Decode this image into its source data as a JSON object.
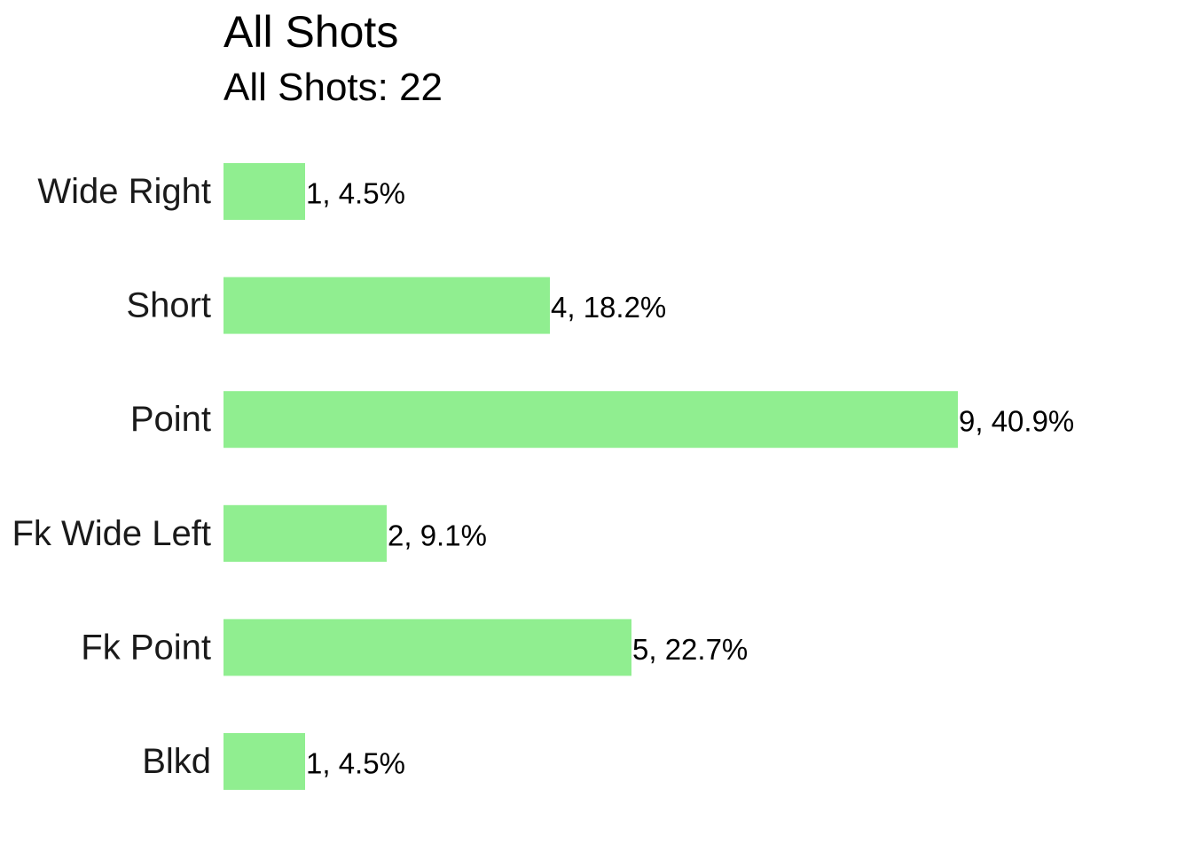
{
  "chart_data": {
    "type": "bar",
    "orientation": "horizontal",
    "title": "All Shots",
    "subtitle": "All Shots: 22",
    "categories": [
      "Wide Right",
      "Short",
      "Point",
      "Fk Wide Left",
      "Fk Point",
      "Blkd"
    ],
    "values": [
      1,
      4,
      9,
      2,
      5,
      1
    ],
    "percentages": [
      4.5,
      18.2,
      40.9,
      9.1,
      22.7,
      4.5
    ],
    "data_labels": [
      "1, 4.5%",
      "4, 18.2%",
      "9, 40.9%",
      "2, 9.1%",
      "5, 22.7%",
      "1, 4.5%"
    ],
    "xlim": [
      0,
      9
    ],
    "xlabel": "",
    "ylabel": "",
    "grid": false,
    "legend": "none",
    "bar_color": "#90EE90"
  }
}
